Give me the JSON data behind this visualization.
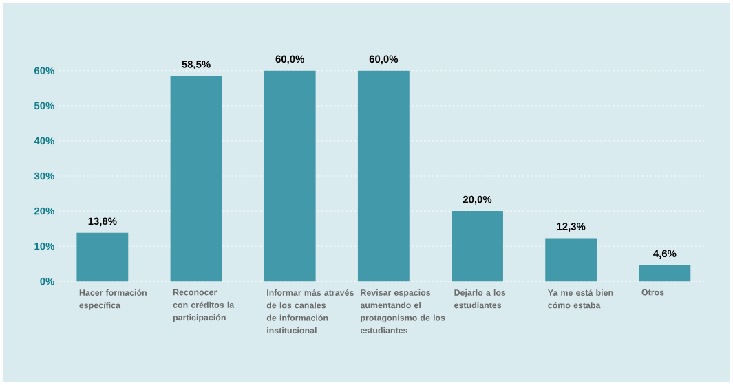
{
  "chart_data": {
    "type": "bar",
    "categories": [
      "Hacer formación específica",
      "Reconocer con créditos la participación",
      "Informar más através de los canales de información institucional",
      "Revisar espacios aumentando el protagonismo de los estudiantes",
      "Dejarlo a los estudiantes",
      "Ya me está bien cómo estaba",
      "Otros"
    ],
    "values": [
      13.8,
      58.5,
      60.0,
      60.0,
      20.0,
      12.3,
      4.6
    ],
    "value_labels": [
      "13,8%",
      "58,5%",
      "60,0%",
      "60,0%",
      "20,0%",
      "12,3%",
      "4,6%"
    ],
    "color": "#4199a9",
    "ylim": [
      0,
      60
    ],
    "yticks": [
      {
        "value": 0,
        "label": "0%"
      },
      {
        "value": 10,
        "label": "10%"
      },
      {
        "value": 20,
        "label": "20%"
      },
      {
        "value": 30,
        "label": "30%"
      },
      {
        "value": 40,
        "label": "40%"
      },
      {
        "value": 50,
        "label": "50%"
      },
      {
        "value": 60,
        "label": "60%"
      }
    ],
    "grid": "y"
  }
}
